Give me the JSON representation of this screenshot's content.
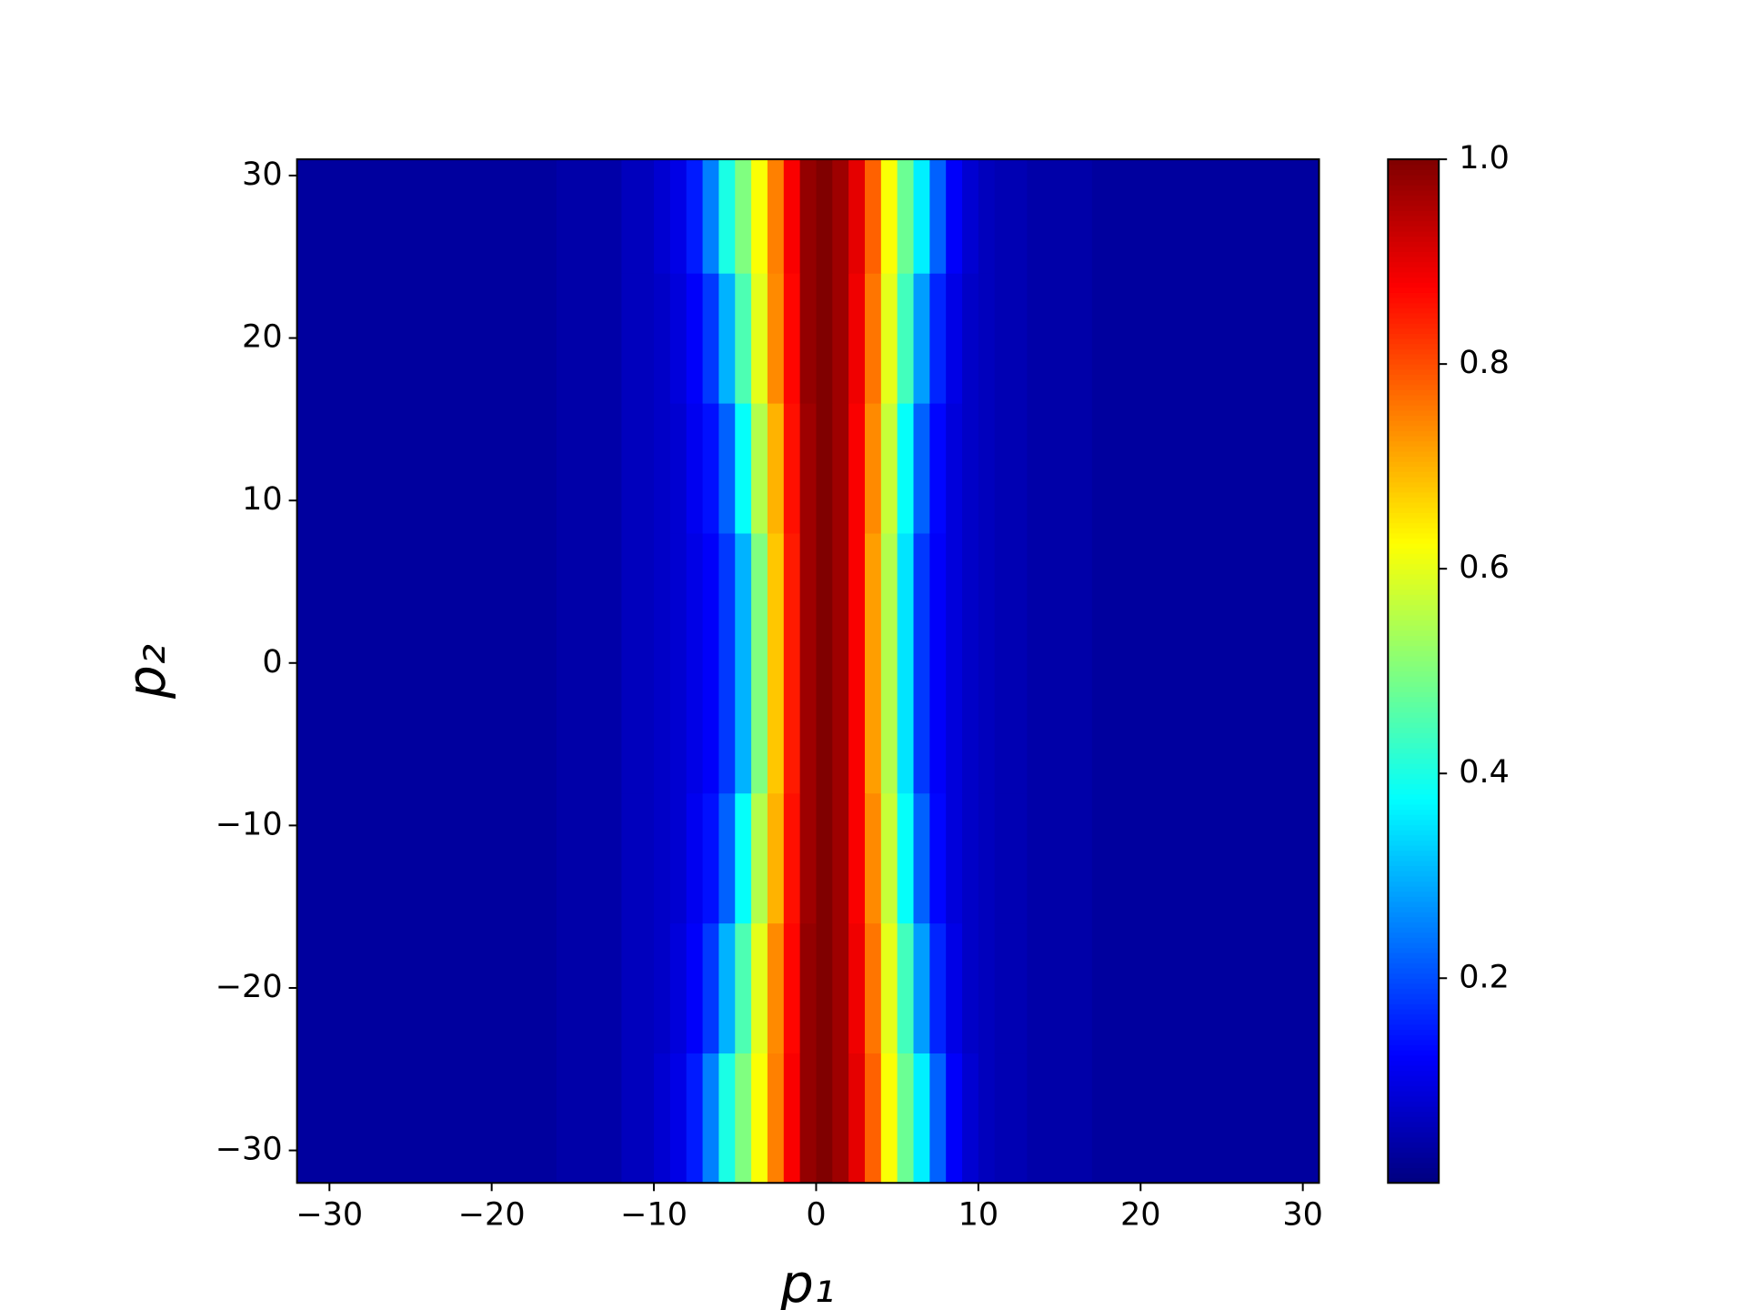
{
  "chart_data": {
    "type": "heatmap",
    "xlabel": "p₁",
    "ylabel": "p₂",
    "colormap": "jet",
    "xlim": [
      -32,
      31
    ],
    "ylim": [
      -32,
      31
    ],
    "clim": [
      0,
      1
    ],
    "xticks": [
      {
        "value": -30,
        "label": "−30"
      },
      {
        "value": -20,
        "label": "−20"
      },
      {
        "value": -10,
        "label": "−10"
      },
      0,
      10,
      20,
      30
    ],
    "yticks": [
      {
        "value": -30,
        "label": "−30"
      },
      {
        "value": -20,
        "label": "−20"
      },
      {
        "value": -10,
        "label": "−10"
      },
      0,
      10,
      20,
      30
    ],
    "cticks": [
      0.2,
      0.4,
      0.6,
      0.8,
      {
        "value": 1,
        "label": "1.0"
      }
    ],
    "xbins": [
      -32,
      -16,
      -12,
      -10,
      -9,
      -8,
      -7,
      -6,
      -5,
      -4,
      -3,
      -2,
      -1,
      0,
      1,
      2,
      3,
      4,
      5,
      6,
      7,
      8,
      9,
      10,
      11,
      13,
      17,
      31
    ],
    "ybins": [
      -32,
      -24,
      -16,
      -8,
      8,
      16,
      24,
      31
    ],
    "values": [
      [
        0.03,
        0.04,
        0.06,
        0.08,
        0.1,
        0.15,
        0.25,
        0.4,
        0.5,
        0.62,
        0.75,
        0.88,
        0.98,
        1.0,
        0.97,
        0.9,
        0.78,
        0.62,
        0.48,
        0.36,
        0.22,
        0.12,
        0.08,
        0.06,
        0.05,
        0.04,
        0.03
      ],
      [
        0.03,
        0.04,
        0.06,
        0.07,
        0.09,
        0.12,
        0.18,
        0.3,
        0.45,
        0.6,
        0.74,
        0.87,
        0.98,
        1.0,
        0.97,
        0.89,
        0.76,
        0.6,
        0.44,
        0.28,
        0.16,
        0.1,
        0.07,
        0.06,
        0.05,
        0.04,
        0.03
      ],
      [
        0.03,
        0.04,
        0.06,
        0.07,
        0.08,
        0.11,
        0.14,
        0.22,
        0.38,
        0.55,
        0.7,
        0.86,
        0.97,
        1.0,
        0.97,
        0.88,
        0.74,
        0.57,
        0.38,
        0.22,
        0.13,
        0.09,
        0.07,
        0.06,
        0.05,
        0.04,
        0.03
      ],
      [
        0.03,
        0.04,
        0.06,
        0.07,
        0.08,
        0.1,
        0.12,
        0.18,
        0.3,
        0.5,
        0.68,
        0.85,
        0.97,
        1.0,
        0.97,
        0.88,
        0.72,
        0.55,
        0.35,
        0.18,
        0.12,
        0.09,
        0.07,
        0.06,
        0.05,
        0.04,
        0.03
      ],
      [
        0.03,
        0.04,
        0.06,
        0.07,
        0.08,
        0.11,
        0.14,
        0.22,
        0.38,
        0.55,
        0.7,
        0.86,
        0.97,
        1.0,
        0.97,
        0.88,
        0.74,
        0.57,
        0.38,
        0.22,
        0.13,
        0.09,
        0.07,
        0.06,
        0.05,
        0.04,
        0.03
      ],
      [
        0.03,
        0.04,
        0.06,
        0.07,
        0.09,
        0.12,
        0.18,
        0.3,
        0.45,
        0.6,
        0.74,
        0.87,
        0.98,
        1.0,
        0.97,
        0.89,
        0.76,
        0.6,
        0.44,
        0.28,
        0.16,
        0.1,
        0.07,
        0.06,
        0.05,
        0.04,
        0.03
      ],
      [
        0.03,
        0.04,
        0.06,
        0.08,
        0.1,
        0.15,
        0.25,
        0.4,
        0.5,
        0.62,
        0.75,
        0.88,
        0.98,
        1.0,
        0.97,
        0.9,
        0.78,
        0.62,
        0.48,
        0.36,
        0.22,
        0.12,
        0.08,
        0.06,
        0.05,
        0.04,
        0.03
      ]
    ]
  }
}
